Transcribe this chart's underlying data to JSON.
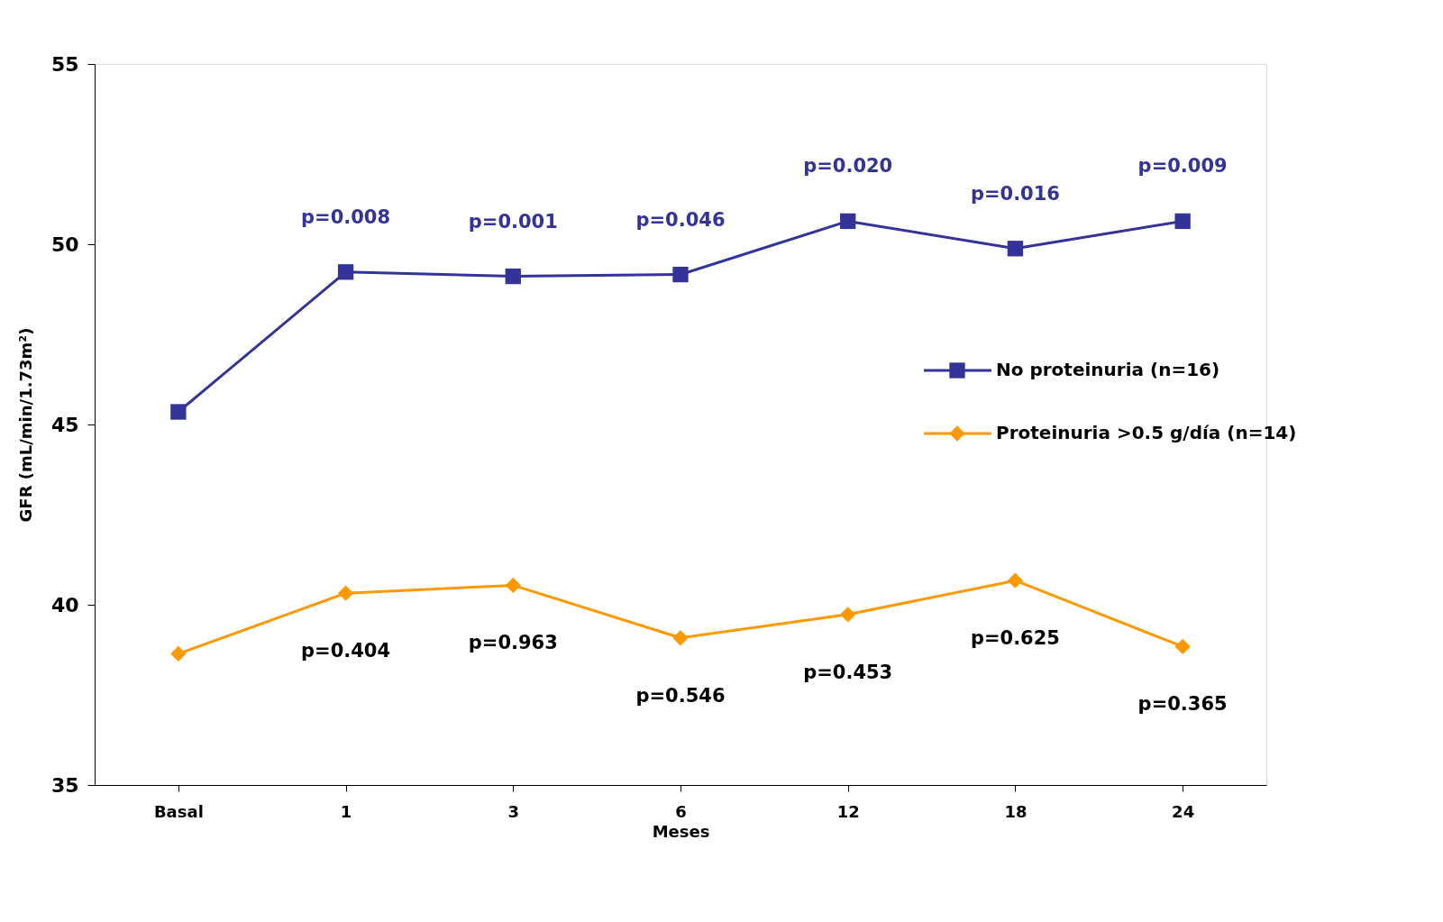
{
  "chart_data": {
    "type": "line",
    "xlabel": "Meses",
    "ylabel": "GFR (mL/min/1.73m²)",
    "categories": [
      "Basal",
      "1",
      "3",
      "6",
      "12",
      "18",
      "24"
    ],
    "series": [
      {
        "name": "No proteinuria (n=16)",
        "color": "#333399",
        "marker": "square",
        "values": [
          45.35,
          49.23,
          49.11,
          49.16,
          50.64,
          49.88,
          50.64
        ]
      },
      {
        "name": "Proteinuria >0.5 g/día (n=14)",
        "color": "#ff9900",
        "marker": "diamond",
        "values": [
          38.64,
          40.32,
          40.54,
          39.08,
          39.73,
          40.67,
          38.84
        ]
      }
    ],
    "ylim": [
      35,
      55
    ],
    "yticks": [
      35,
      40,
      45,
      50,
      55
    ],
    "grid": false,
    "legend": "right",
    "line_style": "solid",
    "annotations": [
      "p=0.008",
      "p=0.001",
      "p=0.046",
      "p=0.020",
      "p=0.016",
      "p=0.009",
      "p=0.404",
      "p=0.963",
      "p=0.546",
      "p=0.453",
      "p=0.625",
      "p=0.365"
    ]
  }
}
